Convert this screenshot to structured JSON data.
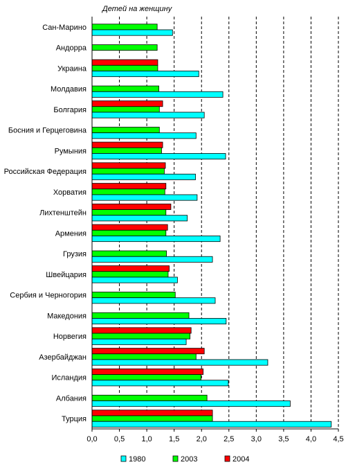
{
  "chart_data": {
    "type": "bar",
    "orientation": "horizontal",
    "unit_label": "Детей на женщину",
    "categories": [
      "Сан-Марино",
      "Андорра",
      "Украина",
      "Молдавия",
      "Болгария",
      "Босния и Герцеговина",
      "Румыния",
      "Российская Федерация",
      "Хорватия",
      "Лихтенштейн",
      "Армения",
      "Грузия",
      "Швейцария",
      "Сербия и Черногория",
      "Македония",
      "Норвегия",
      "Азербайджан",
      "Исландия",
      "Албания",
      "Турция"
    ],
    "series": [
      {
        "name": "2004",
        "color": "#ff0000",
        "values": [
          null,
          null,
          1.2,
          null,
          1.29,
          null,
          1.29,
          1.34,
          1.35,
          1.44,
          1.38,
          null,
          1.41,
          null,
          null,
          1.81,
          2.05,
          2.03,
          null,
          2.2
        ]
      },
      {
        "name": "2003",
        "color": "#00ff00",
        "values": [
          1.19,
          1.19,
          1.2,
          1.22,
          1.23,
          1.23,
          1.27,
          1.32,
          1.33,
          1.35,
          1.35,
          1.36,
          1.39,
          1.52,
          1.77,
          1.79,
          1.9,
          1.99,
          2.1,
          2.2
        ]
      },
      {
        "name": "1980",
        "color": "#00ffff",
        "values": [
          1.47,
          null,
          1.95,
          2.39,
          2.05,
          1.9,
          2.44,
          1.89,
          1.92,
          1.74,
          2.34,
          2.2,
          1.56,
          2.25,
          2.45,
          1.72,
          3.21,
          2.49,
          3.62,
          4.37
        ]
      }
    ],
    "legend_order": [
      "1980",
      "2003",
      "2004"
    ],
    "xlim": [
      0,
      4.5
    ],
    "xticks": [
      "0,0",
      "0,5",
      "1,0",
      "1,5",
      "2,0",
      "2,5",
      "3,0",
      "3,5",
      "4,0",
      "4,5"
    ],
    "grid": "vertical dashed",
    "legend_position": "bottom"
  }
}
